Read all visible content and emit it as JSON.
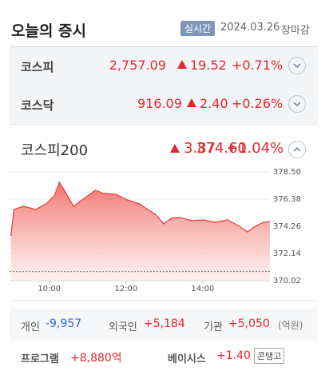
{
  "header": {
    "title": "오늘의 증시",
    "badge": "실시간",
    "date": "2024.03.26",
    "status": "장마감"
  },
  "indices": [
    {
      "name": "코스피",
      "value": "2,757.09",
      "change": "19.52",
      "percent": "+0.71%"
    },
    {
      "name": "코스닥",
      "value": "916.09",
      "change": "2.40",
      "percent": "+0.26%"
    },
    {
      "name": "코스피200",
      "value": "374.60",
      "change": "3.87",
      "percent": "+1.04%"
    }
  ],
  "chart": {
    "type": "area",
    "color": "#e8443a",
    "x": [
      540,
      545,
      560,
      579,
      595,
      608,
      616,
      625,
      638,
      648,
      660,
      672,
      685,
      704,
      722,
      741,
      754,
      766,
      779,
      791,
      804,
      822,
      841,
      860,
      879,
      897,
      910,
      922,
      935,
      945
    ],
    "values": [
      373.51,
      375.57,
      375.82,
      375.57,
      376.01,
      376.63,
      377.69,
      376.94,
      375.82,
      376.19,
      376.63,
      377.07,
      376.82,
      376.75,
      376.32,
      376.01,
      375.57,
      375.19,
      374.45,
      374.88,
      374.95,
      374.7,
      374.76,
      374.57,
      374.76,
      374.26,
      373.82,
      374.26,
      374.57,
      374.63
    ],
    "xlim": [
      538,
      945
    ],
    "xticks": [
      {
        "value": 600,
        "label": "10:00"
      },
      {
        "value": 720,
        "label": "12:00"
      },
      {
        "value": 840,
        "label": "14:00"
      }
    ],
    "ylim": [
      370.02,
      378.5
    ],
    "yticks": [
      {
        "value": 378.5,
        "label": "378.50"
      },
      {
        "value": 376.38,
        "label": "376.38"
      },
      {
        "value": 374.26,
        "label": "374.26"
      },
      {
        "value": 372.14,
        "label": "372.14"
      },
      {
        "value": 370.02,
        "label": "370.02"
      }
    ],
    "reference_line": 370.73
  },
  "investors": {
    "items": [
      {
        "label": "개인",
        "value": "-9,957"
      },
      {
        "label": "외국인",
        "value": "+5,184"
      },
      {
        "label": "기관",
        "value": "+5,050"
      }
    ],
    "unit": "(억원)"
  },
  "program": {
    "label": "프로그램",
    "value": "+8,880억",
    "basis_label": "베이시스",
    "basis_value": "+1.40",
    "basis_state": "콘탱고"
  }
}
